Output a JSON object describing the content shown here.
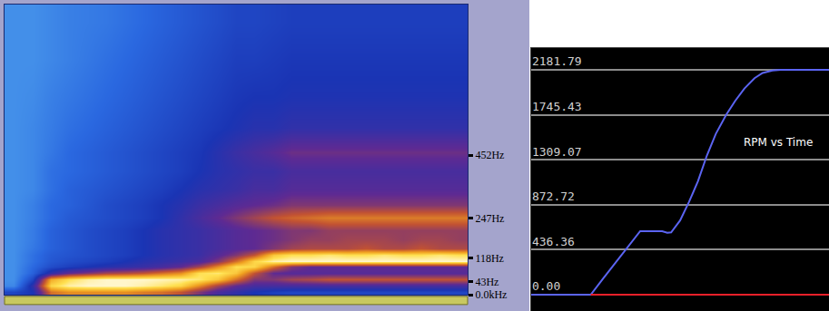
{
  "chart_data": [
    {
      "type": "heatmap",
      "x": [
        1,
        3,
        5,
        7,
        9,
        11,
        13,
        15,
        17,
        19,
        21,
        23,
        25,
        27,
        29,
        31,
        33,
        35,
        37,
        39,
        41,
        43,
        45,
        47,
        49
      ],
      "y": [
        10,
        30,
        50,
        70,
        90,
        110,
        130,
        150,
        180,
        210,
        250,
        290,
        340,
        400,
        460,
        540,
        640,
        760,
        880
      ],
      "z": [
        [
          30,
          35,
          70,
          75,
          75,
          75,
          75,
          72,
          70,
          65,
          55,
          45,
          40,
          35,
          32,
          30,
          30,
          30,
          30,
          30,
          30,
          30,
          30,
          30,
          30
        ],
        [
          12,
          40,
          88,
          95,
          97,
          97,
          97,
          95,
          92,
          88,
          75,
          60,
          50,
          45,
          45,
          45,
          45,
          45,
          45,
          45,
          45,
          45,
          45,
          45,
          45
        ],
        [
          10,
          30,
          80,
          90,
          95,
          97,
          97,
          97,
          96,
          95,
          92,
          85,
          70,
          55,
          55,
          60,
          62,
          65,
          65,
          65,
          65,
          65,
          65,
          65,
          65
        ],
        [
          10,
          22,
          40,
          50,
          55,
          60,
          62,
          65,
          70,
          75,
          90,
          92,
          85,
          65,
          50,
          48,
          48,
          48,
          48,
          48,
          48,
          48,
          48,
          48,
          48
        ],
        [
          10,
          20,
          28,
          32,
          35,
          38,
          40,
          42,
          45,
          50,
          60,
          75,
          90,
          88,
          70,
          55,
          50,
          50,
          50,
          50,
          50,
          50,
          50,
          50,
          50
        ],
        [
          10,
          18,
          25,
          28,
          30,
          32,
          35,
          38,
          40,
          42,
          45,
          55,
          70,
          88,
          95,
          97,
          97,
          97,
          97,
          97,
          97,
          97,
          97,
          97,
          97
        ],
        [
          10,
          18,
          24,
          26,
          28,
          30,
          32,
          35,
          38,
          40,
          42,
          48,
          55,
          65,
          85,
          90,
          90,
          92,
          90,
          90,
          92,
          90,
          90,
          92,
          90
        ],
        [
          10,
          16,
          22,
          25,
          28,
          30,
          32,
          35,
          38,
          40,
          42,
          45,
          48,
          50,
          55,
          60,
          62,
          62,
          62,
          65,
          62,
          62,
          65,
          62,
          62
        ],
        [
          10,
          15,
          22,
          25,
          28,
          30,
          32,
          35,
          38,
          40,
          42,
          45,
          48,
          50,
          52,
          55,
          58,
          58,
          60,
          60,
          60,
          58,
          60,
          60,
          58
        ],
        [
          10,
          15,
          22,
          25,
          28,
          30,
          32,
          35,
          38,
          40,
          42,
          45,
          48,
          50,
          52,
          55,
          55,
          58,
          58,
          58,
          58,
          58,
          58,
          58,
          58
        ],
        [
          10,
          14,
          20,
          24,
          26,
          28,
          30,
          32,
          35,
          40,
          45,
          50,
          55,
          60,
          65,
          68,
          70,
          72,
          72,
          72,
          72,
          72,
          72,
          72,
          72
        ],
        [
          10,
          14,
          20,
          22,
          25,
          28,
          30,
          32,
          35,
          38,
          42,
          45,
          48,
          50,
          52,
          55,
          55,
          55,
          55,
          55,
          55,
          55,
          55,
          55,
          55
        ],
        [
          10,
          12,
          18,
          22,
          24,
          26,
          28,
          30,
          32,
          35,
          38,
          40,
          42,
          45,
          45,
          48,
          48,
          48,
          48,
          48,
          48,
          48,
          48,
          48,
          48
        ],
        [
          10,
          12,
          18,
          20,
          22,
          24,
          26,
          28,
          30,
          32,
          35,
          38,
          40,
          42,
          42,
          45,
          45,
          45,
          45,
          45,
          45,
          45,
          45,
          45,
          45
        ],
        [
          10,
          12,
          16,
          20,
          22,
          24,
          26,
          28,
          30,
          32,
          34,
          38,
          42,
          45,
          48,
          52,
          52,
          52,
          52,
          52,
          52,
          52,
          52,
          52,
          52
        ],
        [
          10,
          12,
          15,
          18,
          20,
          22,
          24,
          26,
          28,
          30,
          32,
          34,
          36,
          38,
          38,
          40,
          40,
          40,
          40,
          40,
          40,
          40,
          40,
          40,
          40
        ],
        [
          10,
          11,
          14,
          16,
          18,
          20,
          22,
          24,
          26,
          28,
          30,
          32,
          34,
          35,
          35,
          36,
          36,
          36,
          36,
          36,
          36,
          36,
          36,
          36,
          36
        ],
        [
          10,
          10,
          12,
          14,
          16,
          18,
          20,
          22,
          24,
          26,
          28,
          30,
          32,
          32,
          33,
          34,
          34,
          34,
          34,
          34,
          34,
          34,
          34,
          34,
          34
        ],
        [
          10,
          10,
          12,
          14,
          15,
          16,
          18,
          20,
          22,
          24,
          26,
          28,
          30,
          30,
          31,
          32,
          32,
          32,
          32,
          32,
          32,
          32,
          32,
          32,
          32
        ]
      ],
      "zlim": [
        0,
        100
      ],
      "xlim": [
        0,
        50
      ],
      "xticks": [
        10,
        20,
        30,
        40
      ],
      "ylim": [
        0,
        940
      ],
      "yticks": [
        {
          "value": 0,
          "label": "0.0kHz"
        },
        {
          "value": 43,
          "label": "43Hz"
        },
        {
          "value": 118,
          "label": "118Hz"
        },
        {
          "value": 247,
          "label": "247Hz"
        },
        {
          "value": 452,
          "label": "452Hz"
        }
      ],
      "grid": "x",
      "tick_labels": "y"
    },
    {
      "type": "line",
      "series": [
        {
          "color": "#5b64f2",
          "x": [
            0,
            20,
            24,
            28,
            32,
            36.6,
            40,
            44,
            45.7,
            47,
            50,
            53,
            56,
            59,
            62,
            65.5,
            68.5,
            71.6,
            75,
            77.7,
            81,
            83.8,
            90,
            100
          ],
          "values": [
            0,
            0,
            150,
            300,
            450,
            616,
            616,
            616,
            600,
            605,
            720,
            900,
            1100,
            1350,
            1560,
            1745,
            1880,
            2000,
            2100,
            2150,
            2175,
            2181.79,
            2181.79,
            2181.79
          ]
        },
        {
          "color": "#e8202a",
          "x": [
            20,
            100
          ],
          "values": [
            0,
            0
          ]
        }
      ],
      "xlim": [
        0,
        100
      ],
      "xticks": [],
      "ylim": [
        -158,
        2392
      ],
      "yticks": [
        {
          "value": 0,
          "label": "0.00"
        },
        436.36,
        872.72,
        1309.07,
        1745.43,
        2181.79
      ],
      "grid": "y",
      "tick_labels": "y",
      "annotations": [
        {
          "text": "RPM vs Time",
          "x": 83,
          "y": 1478
        }
      ]
    }
  ]
}
